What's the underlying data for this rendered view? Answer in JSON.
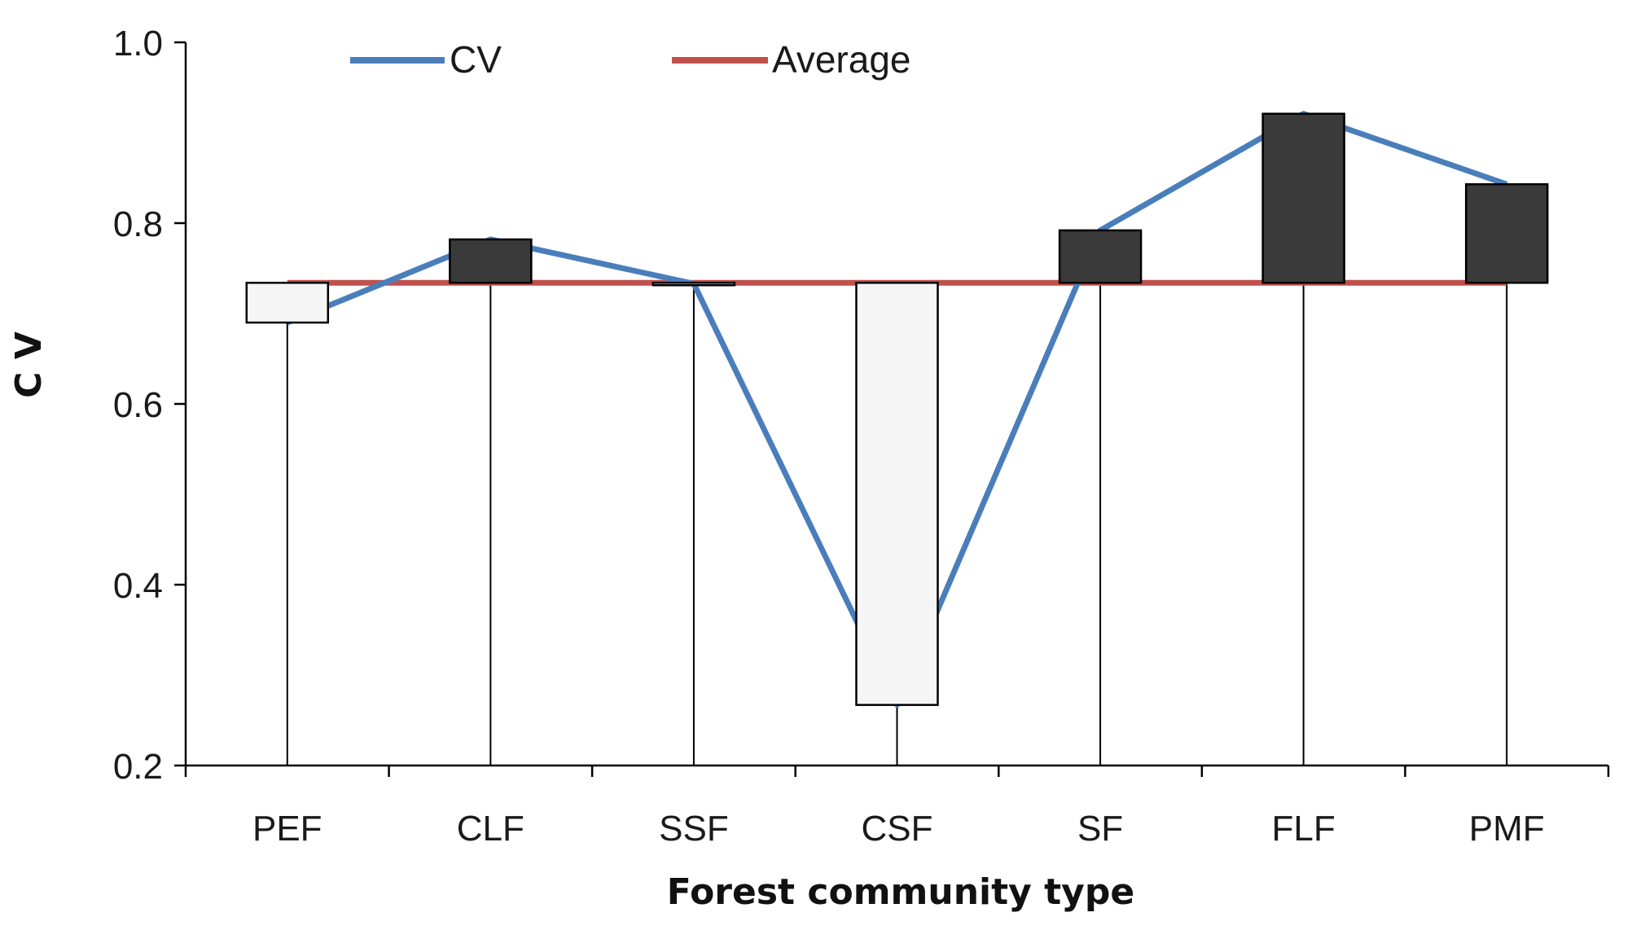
{
  "chart_data": {
    "type": "line",
    "title": "",
    "xlabel": "Forest community type",
    "ylabel": "C V",
    "categories": [
      "PEF",
      "CLF",
      "SSF",
      "CSF",
      "SF",
      "FLF",
      "PMF"
    ],
    "ylim": [
      0.2,
      1.0
    ],
    "yticks": [
      "0.2",
      "0.4",
      "0.6",
      "0.8",
      "1.0"
    ],
    "yticks_values": [
      0.2,
      0.4,
      0.6,
      0.8,
      1.0
    ],
    "grid": false,
    "legend_position": "top-left",
    "series": [
      {
        "name": "CV",
        "color": "#4a7ebb",
        "values": [
          0.69,
          0.782,
          0.733,
          0.267,
          0.792,
          0.921,
          0.843
        ]
      },
      {
        "name": "Average",
        "color": "#c0504d",
        "values": [
          0.734,
          0.734,
          0.734,
          0.734,
          0.734,
          0.734,
          0.734
        ]
      }
    ],
    "deviation_bars": {
      "baseline": 0.734,
      "above_color": "#3a3a3a",
      "below_color": "#f5f5f5"
    }
  }
}
